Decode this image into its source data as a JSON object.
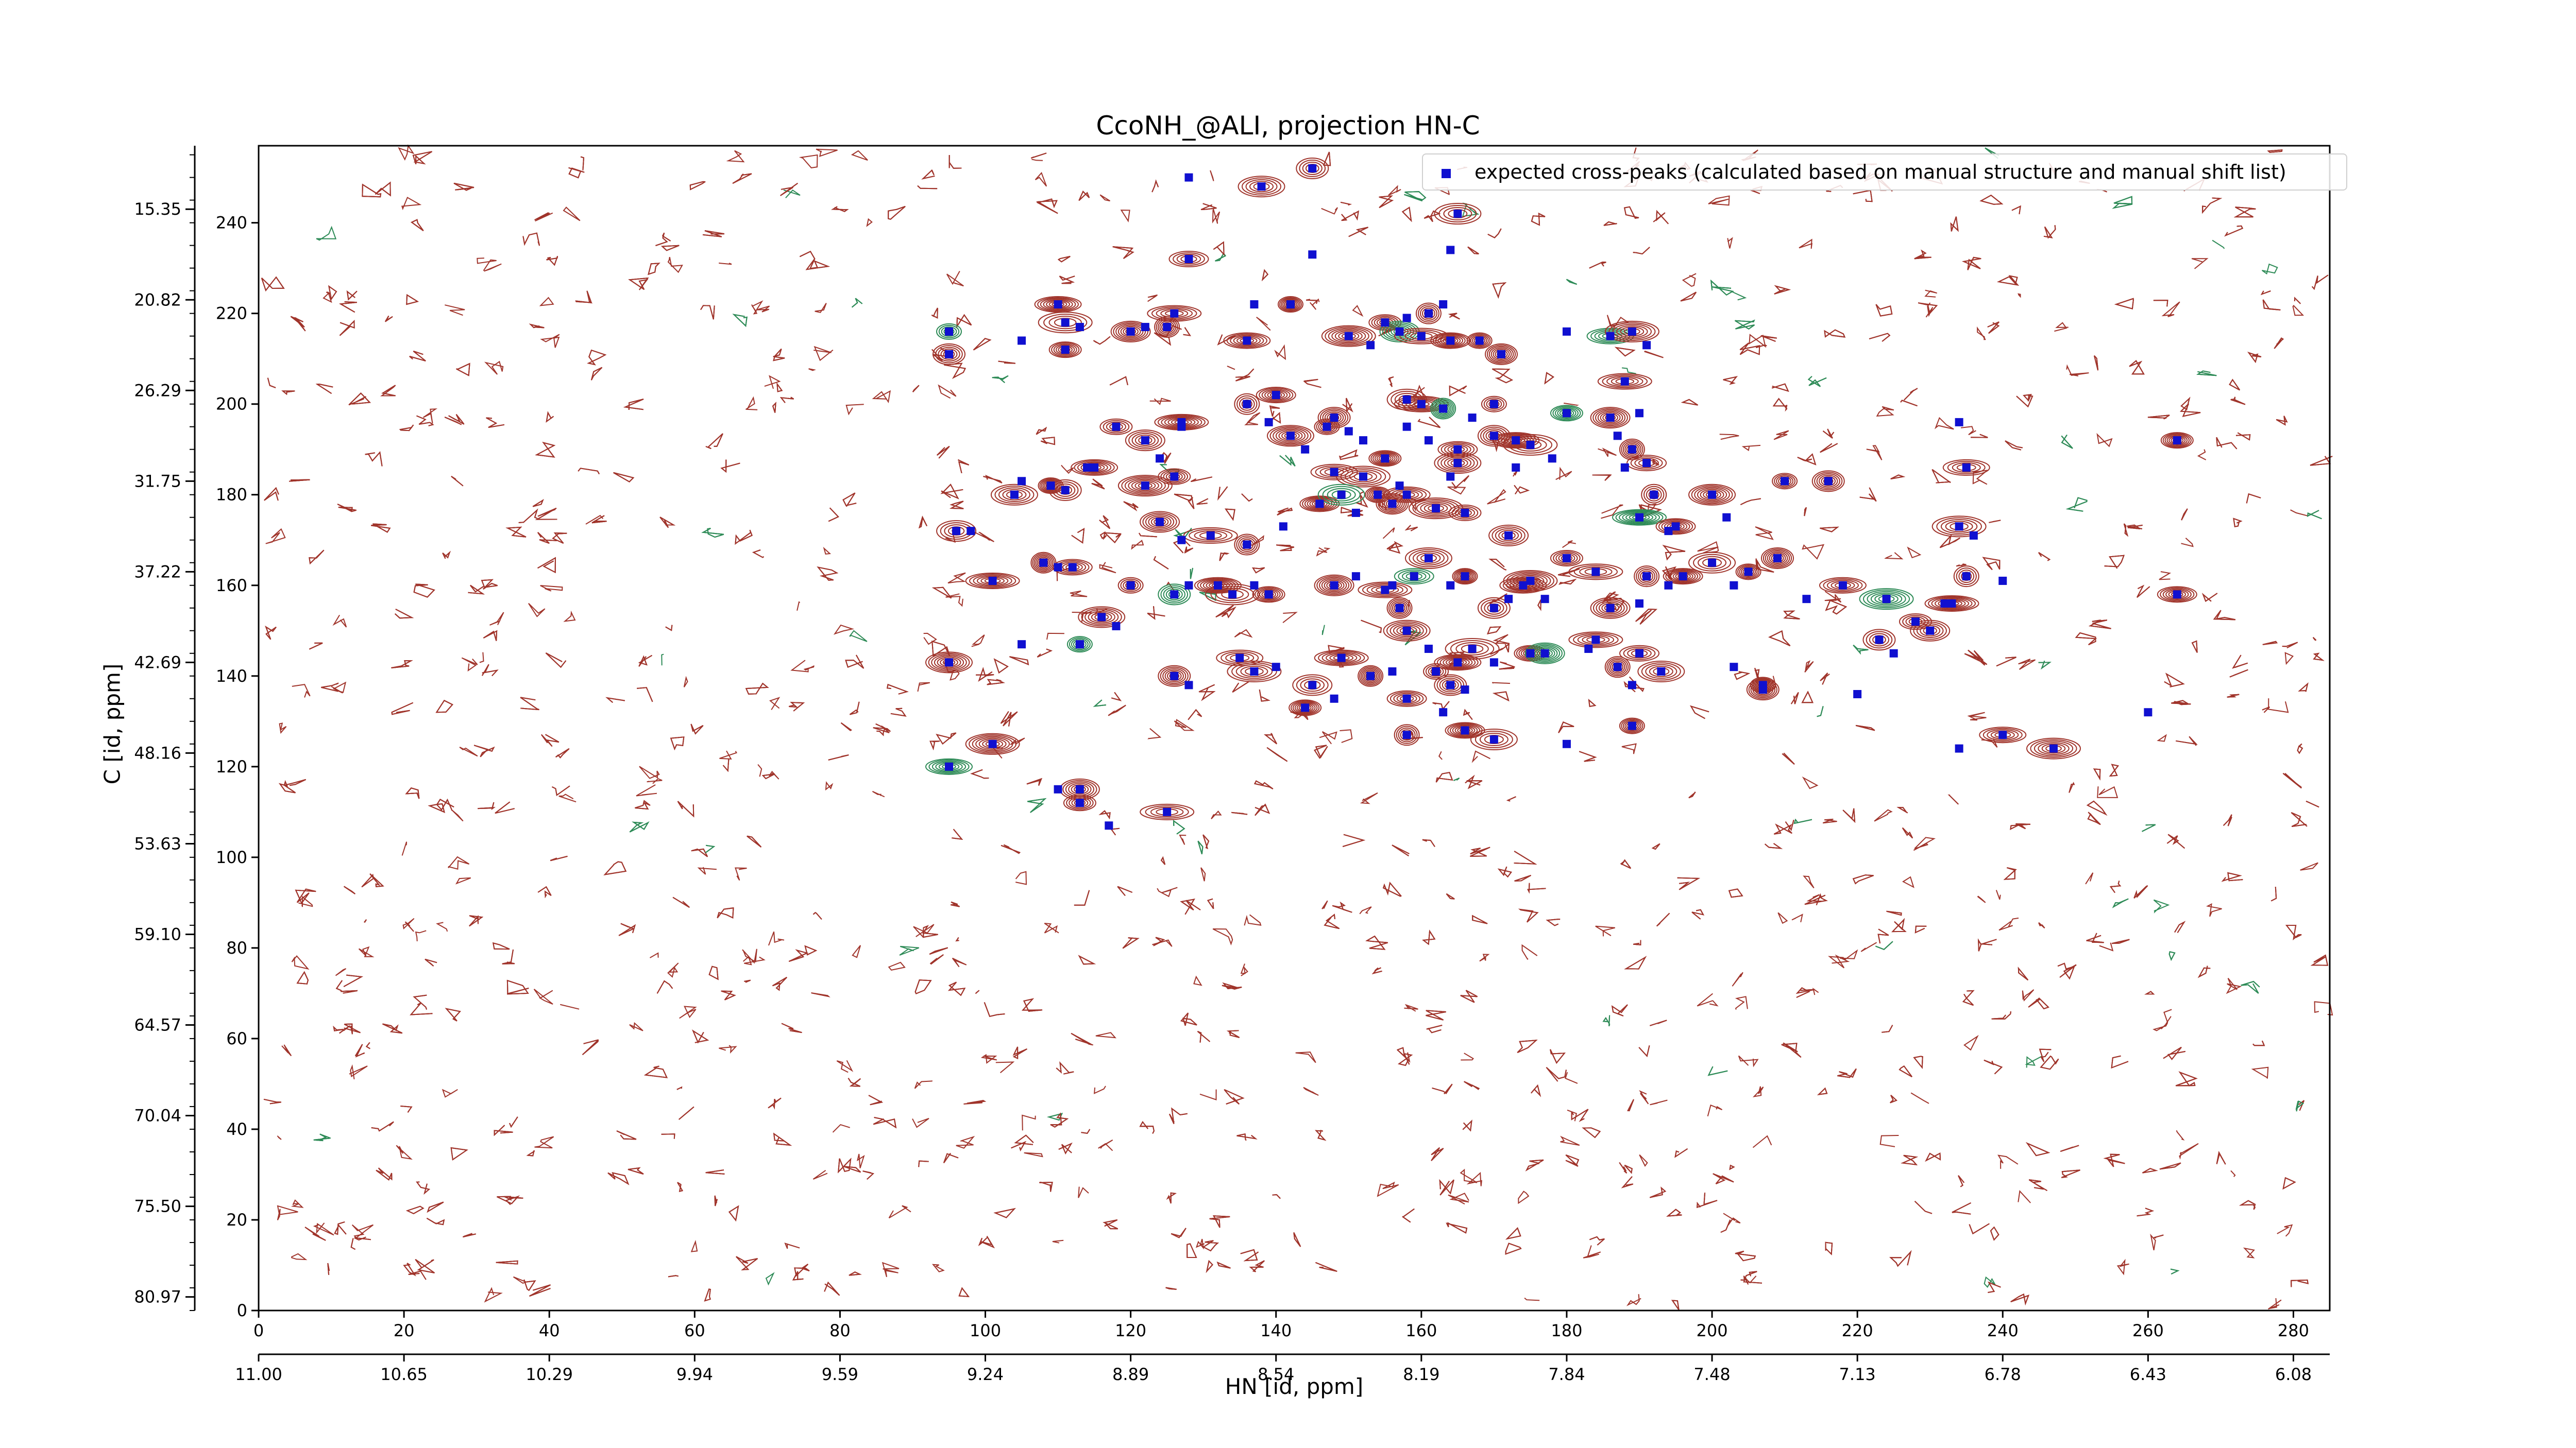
{
  "chart_data": {
    "type": "scatter",
    "title": "CcoNH_@ALI, projection HN-C",
    "xlabel": "HN [id, ppm]",
    "ylabel": "C [id, ppm]",
    "x_index_ticks": [
      "0",
      "20",
      "40",
      "60",
      "80",
      "100",
      "120",
      "140",
      "160",
      "180",
      "200",
      "220",
      "240",
      "260",
      "280"
    ],
    "x_ppm_ticks": [
      "11.00",
      "10.65",
      "10.29",
      "9.94",
      "9.59",
      "9.24",
      "8.89",
      "8.54",
      "8.19",
      "7.84",
      "7.48",
      "7.13",
      "6.78",
      "6.43",
      "6.08"
    ],
    "y_index_ticks": [
      "0",
      "20",
      "40",
      "60",
      "80",
      "100",
      "120",
      "140",
      "160",
      "180",
      "200",
      "220",
      "240"
    ],
    "y_ppm_ticks": [
      "80.97",
      "75.50",
      "70.04",
      "64.57",
      "59.10",
      "53.63",
      "48.16",
      "42.69",
      "37.22",
      "31.75",
      "26.29",
      "20.82",
      "15.35"
    ],
    "xlim": [
      0,
      285
    ],
    "ylim": [
      0,
      257
    ],
    "legend": {
      "label": "expected cross-peaks (calculated based on manual structure and manual shift list)",
      "location": "top-right"
    },
    "colors": {
      "positive_contour": "#a0342b",
      "negative_contour": "#2e8b57",
      "peak_marker": "#1010d0"
    },
    "series": [
      {
        "name": "expected cross-peaks (calculated based on manual structure and manual shift list)",
        "points": [
          [
            95,
            216
          ],
          [
            95,
            211
          ],
          [
            105,
            214
          ],
          [
            110,
            222
          ],
          [
            111,
            218
          ],
          [
            113,
            217
          ],
          [
            111,
            212
          ],
          [
            120,
            216
          ],
          [
            122,
            217
          ],
          [
            126,
            220
          ],
          [
            125,
            217
          ],
          [
            128,
            250
          ],
          [
            128,
            232
          ],
          [
            138,
            248
          ],
          [
            137,
            222
          ],
          [
            142,
            222
          ],
          [
            145,
            252
          ],
          [
            145,
            233
          ],
          [
            136,
            214
          ],
          [
            150,
            215
          ],
          [
            153,
            213
          ],
          [
            155,
            218
          ],
          [
            157,
            216
          ],
          [
            158,
            219
          ],
          [
            160,
            215
          ],
          [
            161,
            220
          ],
          [
            163,
            222
          ],
          [
            164,
            214
          ],
          [
            165,
            242
          ],
          [
            164,
            234
          ],
          [
            168,
            214
          ],
          [
            171,
            211
          ],
          [
            180,
            216
          ],
          [
            186,
            215
          ],
          [
            189,
            216
          ],
          [
            191,
            213
          ],
          [
            118,
            195
          ],
          [
            122,
            192
          ],
          [
            127,
            195
          ],
          [
            127,
            196
          ],
          [
            136,
            200
          ],
          [
            139,
            196
          ],
          [
            140,
            202
          ],
          [
            142,
            193
          ],
          [
            144,
            190
          ],
          [
            147,
            195
          ],
          [
            148,
            197
          ],
          [
            150,
            194
          ],
          [
            148,
            185
          ],
          [
            152,
            184
          ],
          [
            152,
            192
          ],
          [
            155,
            188
          ],
          [
            158,
            201
          ],
          [
            158,
            195
          ],
          [
            160,
            200
          ],
          [
            163,
            199
          ],
          [
            161,
            192
          ],
          [
            165,
            190
          ],
          [
            165,
            187
          ],
          [
            167,
            197
          ],
          [
            170,
            200
          ],
          [
            170,
            193
          ],
          [
            173,
            186
          ],
          [
            173,
            192
          ],
          [
            175,
            191
          ],
          [
            178,
            188
          ],
          [
            180,
            198
          ],
          [
            186,
            197
          ],
          [
            187,
            193
          ],
          [
            188,
            205
          ],
          [
            189,
            190
          ],
          [
            190,
            198
          ],
          [
            191,
            187
          ],
          [
            104,
            180
          ],
          [
            105,
            183
          ],
          [
            109,
            182
          ],
          [
            111,
            181
          ],
          [
            114,
            186
          ],
          [
            115,
            186
          ],
          [
            122,
            182
          ],
          [
            124,
            188
          ],
          [
            126,
            184
          ],
          [
            124,
            174
          ],
          [
            127,
            170
          ],
          [
            131,
            171
          ],
          [
            136,
            169
          ],
          [
            141,
            173
          ],
          [
            146,
            178
          ],
          [
            149,
            180
          ],
          [
            151,
            176
          ],
          [
            154,
            180
          ],
          [
            156,
            178
          ],
          [
            157,
            182
          ],
          [
            158,
            180
          ],
          [
            162,
            177
          ],
          [
            164,
            184
          ],
          [
            166,
            176
          ],
          [
            172,
            171
          ],
          [
            188,
            186
          ],
          [
            190,
            175
          ],
          [
            192,
            180
          ],
          [
            194,
            172
          ],
          [
            195,
            173
          ],
          [
            200,
            180
          ],
          [
            202,
            175
          ],
          [
            210,
            183
          ],
          [
            216,
            183
          ],
          [
            234,
            196
          ],
          [
            235,
            186
          ],
          [
            234,
            173
          ],
          [
            236,
            171
          ],
          [
            264,
            192
          ],
          [
            96,
            172
          ],
          [
            98,
            172
          ],
          [
            101,
            161
          ],
          [
            108,
            165
          ],
          [
            110,
            164
          ],
          [
            112,
            164
          ],
          [
            116,
            153
          ],
          [
            118,
            151
          ],
          [
            120,
            160
          ],
          [
            126,
            158
          ],
          [
            128,
            160
          ],
          [
            132,
            160
          ],
          [
            134,
            158
          ],
          [
            137,
            160
          ],
          [
            139,
            158
          ],
          [
            148,
            160
          ],
          [
            151,
            162
          ],
          [
            155,
            159
          ],
          [
            157,
            155
          ],
          [
            156,
            160
          ],
          [
            159,
            162
          ],
          [
            161,
            166
          ],
          [
            164,
            160
          ],
          [
            166,
            162
          ],
          [
            170,
            155
          ],
          [
            172,
            157
          ],
          [
            174,
            160
          ],
          [
            175,
            161
          ],
          [
            177,
            157
          ],
          [
            180,
            166
          ],
          [
            186,
            155
          ],
          [
            190,
            156
          ],
          [
            184,
            163
          ],
          [
            191,
            162
          ],
          [
            194,
            160
          ],
          [
            196,
            162
          ],
          [
            200,
            165
          ],
          [
            203,
            160
          ],
          [
            205,
            163
          ],
          [
            209,
            166
          ],
          [
            213,
            157
          ],
          [
            218,
            160
          ],
          [
            224,
            157
          ],
          [
            225,
            145
          ],
          [
            228,
            152
          ],
          [
            230,
            150
          ],
          [
            232,
            156
          ],
          [
            233,
            156
          ],
          [
            235,
            162
          ],
          [
            240,
            161
          ],
          [
            264,
            158
          ],
          [
            95,
            143
          ],
          [
            105,
            147
          ],
          [
            113,
            147
          ],
          [
            126,
            140
          ],
          [
            128,
            138
          ],
          [
            135,
            144
          ],
          [
            137,
            141
          ],
          [
            140,
            142
          ],
          [
            144,
            133
          ],
          [
            145,
            138
          ],
          [
            148,
            135
          ],
          [
            149,
            144
          ],
          [
            153,
            140
          ],
          [
            156,
            141
          ],
          [
            158,
            135
          ],
          [
            158,
            150
          ],
          [
            161,
            146
          ],
          [
            162,
            141
          ],
          [
            164,
            138
          ],
          [
            166,
            137
          ],
          [
            165,
            143
          ],
          [
            167,
            146
          ],
          [
            170,
            143
          ],
          [
            175,
            145
          ],
          [
            177,
            145
          ],
          [
            183,
            146
          ],
          [
            184,
            148
          ],
          [
            187,
            142
          ],
          [
            189,
            138
          ],
          [
            190,
            145
          ],
          [
            193,
            141
          ],
          [
            203,
            142
          ],
          [
            207,
            138
          ],
          [
            223,
            148
          ],
          [
            234,
            124
          ],
          [
            95,
            120
          ],
          [
            101,
            125
          ],
          [
            110,
            115
          ],
          [
            113,
            112
          ],
          [
            113,
            115
          ],
          [
            117,
            107
          ],
          [
            125,
            110
          ],
          [
            158,
            127
          ],
          [
            163,
            132
          ],
          [
            166,
            128
          ],
          [
            170,
            126
          ],
          [
            180,
            125
          ],
          [
            189,
            129
          ],
          [
            207,
            137
          ],
          [
            220,
            136
          ],
          [
            240,
            127
          ],
          [
            247,
            124
          ],
          [
            260,
            132
          ]
        ]
      }
    ]
  }
}
